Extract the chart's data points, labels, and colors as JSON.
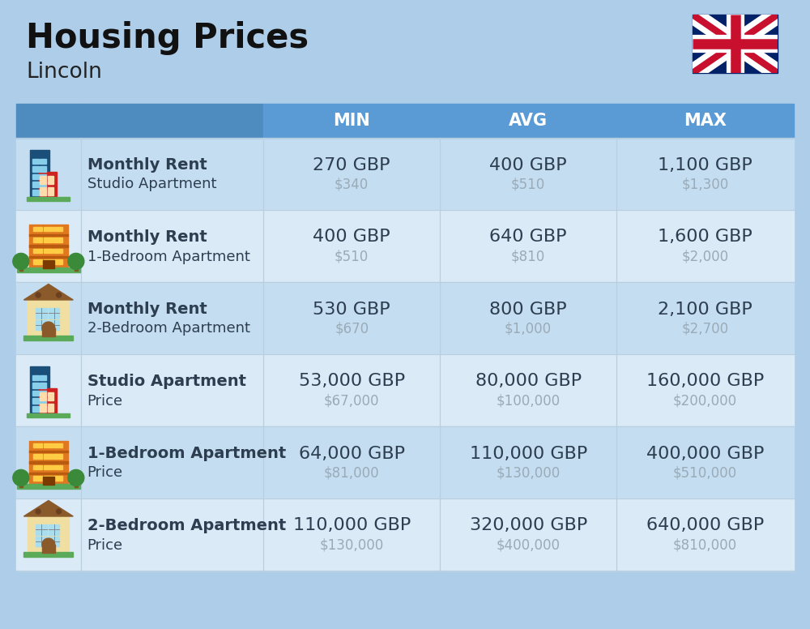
{
  "title": "Housing Prices",
  "subtitle": "Lincoln",
  "background_color": "#aecde8",
  "header_color": "#5b9bd5",
  "header_text_color": "#ffffff",
  "row_color_odd": "#c5ddf0",
  "row_color_even": "#daeaf7",
  "col_headers": [
    "MIN",
    "AVG",
    "MAX"
  ],
  "rows": [
    {
      "label_bold": "Monthly Rent",
      "label_sub": "Studio Apartment",
      "icon_type": "blue_building",
      "min_gbp": "270 GBP",
      "min_usd": "$340",
      "avg_gbp": "400 GBP",
      "avg_usd": "$510",
      "max_gbp": "1,100 GBP",
      "max_usd": "$1,300"
    },
    {
      "label_bold": "Monthly Rent",
      "label_sub": "1-Bedroom Apartment",
      "icon_type": "orange_building",
      "min_gbp": "400 GBP",
      "min_usd": "$510",
      "avg_gbp": "640 GBP",
      "avg_usd": "$810",
      "max_gbp": "1,600 GBP",
      "max_usd": "$2,000"
    },
    {
      "label_bold": "Monthly Rent",
      "label_sub": "2-Bedroom Apartment",
      "icon_type": "beige_building",
      "min_gbp": "530 GBP",
      "min_usd": "$670",
      "avg_gbp": "800 GBP",
      "avg_usd": "$1,000",
      "max_gbp": "2,100 GBP",
      "max_usd": "$2,700"
    },
    {
      "label_bold": "Studio Apartment",
      "label_sub": "Price",
      "icon_type": "blue_building",
      "min_gbp": "53,000 GBP",
      "min_usd": "$67,000",
      "avg_gbp": "80,000 GBP",
      "avg_usd": "$100,000",
      "max_gbp": "160,000 GBP",
      "max_usd": "$200,000"
    },
    {
      "label_bold": "1-Bedroom Apartment",
      "label_sub": "Price",
      "icon_type": "orange_building",
      "min_gbp": "64,000 GBP",
      "min_usd": "$81,000",
      "avg_gbp": "110,000 GBP",
      "avg_usd": "$130,000",
      "max_gbp": "400,000 GBP",
      "max_usd": "$510,000"
    },
    {
      "label_bold": "2-Bedroom Apartment",
      "label_sub": "Price",
      "icon_type": "beige_building",
      "min_gbp": "110,000 GBP",
      "min_usd": "$130,000",
      "avg_gbp": "320,000 GBP",
      "avg_usd": "$400,000",
      "max_gbp": "640,000 GBP",
      "max_usd": "$810,000"
    }
  ],
  "cell_text_color": "#2c3e50",
  "cell_usd_color": "#9aabb8",
  "title_fontsize": 30,
  "subtitle_fontsize": 19,
  "header_fontsize": 15,
  "cell_gbp_fontsize": 16,
  "cell_usd_fontsize": 12,
  "label_bold_fontsize": 14,
  "label_sub_fontsize": 13
}
